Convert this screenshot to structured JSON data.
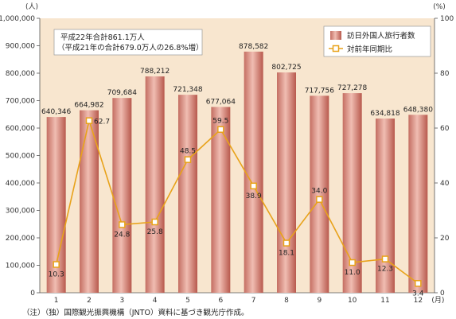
{
  "chart_data": {
    "type": "bar",
    "categories": [
      "1",
      "2",
      "3",
      "4",
      "5",
      "6",
      "7",
      "8",
      "9",
      "10",
      "11",
      "12"
    ],
    "month_unit": "(月)",
    "series": [
      {
        "name": "訪日外国人旅行者数",
        "type": "bar",
        "axis": "left",
        "values": [
          640346,
          664982,
          709684,
          788212,
          721348,
          677064,
          878582,
          802725,
          717756,
          727278,
          634818,
          648380
        ],
        "labels": [
          "640,346",
          "664,982",
          "709,684",
          "788,212",
          "721,348",
          "677,064",
          "878,582",
          "802,725",
          "717,756",
          "727,278",
          "634,818",
          "648,380"
        ]
      },
      {
        "name": "対前年同期比",
        "type": "line",
        "axis": "right",
        "values": [
          10.3,
          62.7,
          24.8,
          25.8,
          48.5,
          59.5,
          38.9,
          18.1,
          34.0,
          11.0,
          12.3,
          3.4
        ],
        "labels": [
          "10.3",
          "62.7",
          "24.8",
          "25.8",
          "48.5",
          "59.5",
          "38.9",
          "18.1",
          "34.0",
          "11.0",
          "12.3",
          "3.4"
        ]
      }
    ],
    "y_left": {
      "unit": "(人)",
      "min": 0,
      "max": 1000000,
      "ticks": [
        0,
        100000,
        200000,
        300000,
        400000,
        500000,
        600000,
        700000,
        800000,
        900000,
        1000000
      ],
      "tick_labels": [
        "0",
        "100,000",
        "200,000",
        "300,000",
        "400,000",
        "500,000",
        "600,000",
        "700,000",
        "800,000",
        "900,000",
        "1,000,000"
      ]
    },
    "y_right": {
      "unit": "(%)",
      "min": 0,
      "max": 100,
      "ticks": [
        0,
        20,
        40,
        60,
        80,
        100
      ],
      "tick_labels": [
        "0",
        "20",
        "40",
        "60",
        "80",
        "100"
      ]
    },
    "annotation": [
      "平成22年合計861.1万人",
      "（平成21年の合計679.0万人の26.8%増）"
    ],
    "legend_position": "top-right",
    "grid": false,
    "colors": {
      "bar": "#d98e83",
      "bar_dark": "#b85a4f",
      "line": "#e8a21a",
      "plot_bg": "#f8e6cf"
    }
  },
  "footnote": "（注）（独）国際観光振興機構（JNTO）資料に基づき観光庁作成。"
}
